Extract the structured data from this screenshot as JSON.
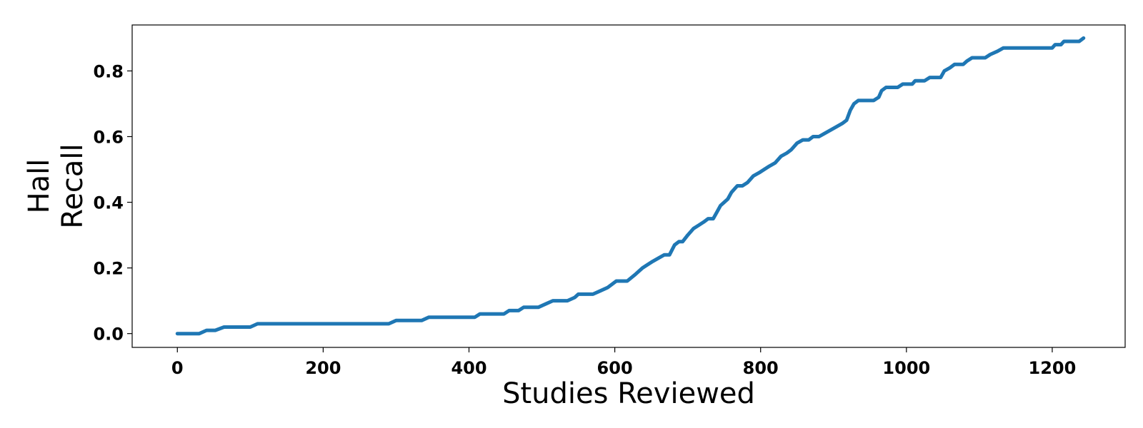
{
  "chart_data": {
    "type": "line",
    "title": "",
    "xlabel": "Studies Reviewed",
    "ylabel_lines": [
      "Hall",
      "Recall"
    ],
    "xlim": [
      -62,
      1300
    ],
    "ylim": [
      -0.042,
      0.94
    ],
    "x_ticks": [
      0,
      200,
      400,
      600,
      800,
      1000,
      1200
    ],
    "y_ticks": [
      0.0,
      0.2,
      0.4,
      0.6,
      0.8
    ],
    "x_tick_labels": [
      "0",
      "200",
      "400",
      "600",
      "800",
      "1000",
      "1200"
    ],
    "y_tick_labels": [
      "0.0",
      "0.2",
      "0.4",
      "0.6",
      "0.8"
    ],
    "grid": false,
    "legend": "none",
    "series": [
      {
        "color": "#1f77b4",
        "points": [
          [
            0,
            0.0
          ],
          [
            30,
            0.0
          ],
          [
            40,
            0.01
          ],
          [
            52,
            0.01
          ],
          [
            64,
            0.02
          ],
          [
            100,
            0.02
          ],
          [
            110,
            0.03
          ],
          [
            290,
            0.03
          ],
          [
            300,
            0.04
          ],
          [
            335,
            0.04
          ],
          [
            345,
            0.05
          ],
          [
            408,
            0.05
          ],
          [
            415,
            0.06
          ],
          [
            448,
            0.06
          ],
          [
            455,
            0.07
          ],
          [
            468,
            0.07
          ],
          [
            475,
            0.08
          ],
          [
            495,
            0.08
          ],
          [
            505,
            0.09
          ],
          [
            515,
            0.1
          ],
          [
            535,
            0.1
          ],
          [
            545,
            0.11
          ],
          [
            550,
            0.12
          ],
          [
            570,
            0.12
          ],
          [
            580,
            0.13
          ],
          [
            590,
            0.14
          ],
          [
            602,
            0.16
          ],
          [
            617,
            0.16
          ],
          [
            628,
            0.18
          ],
          [
            638,
            0.2
          ],
          [
            645,
            0.21
          ],
          [
            652,
            0.22
          ],
          [
            660,
            0.23
          ],
          [
            668,
            0.24
          ],
          [
            675,
            0.24
          ],
          [
            682,
            0.27
          ],
          [
            688,
            0.28
          ],
          [
            693,
            0.28
          ],
          [
            700,
            0.3
          ],
          [
            708,
            0.32
          ],
          [
            715,
            0.33
          ],
          [
            722,
            0.34
          ],
          [
            728,
            0.35
          ],
          [
            735,
            0.35
          ],
          [
            740,
            0.37
          ],
          [
            745,
            0.39
          ],
          [
            750,
            0.4
          ],
          [
            755,
            0.41
          ],
          [
            760,
            0.43
          ],
          [
            768,
            0.45
          ],
          [
            775,
            0.45
          ],
          [
            782,
            0.46
          ],
          [
            790,
            0.48
          ],
          [
            798,
            0.49
          ],
          [
            805,
            0.5
          ],
          [
            812,
            0.51
          ],
          [
            820,
            0.52
          ],
          [
            828,
            0.54
          ],
          [
            836,
            0.55
          ],
          [
            842,
            0.56
          ],
          [
            850,
            0.58
          ],
          [
            858,
            0.59
          ],
          [
            866,
            0.59
          ],
          [
            872,
            0.6
          ],
          [
            880,
            0.6
          ],
          [
            888,
            0.61
          ],
          [
            896,
            0.62
          ],
          [
            904,
            0.63
          ],
          [
            912,
            0.64
          ],
          [
            918,
            0.65
          ],
          [
            923,
            0.68
          ],
          [
            928,
            0.7
          ],
          [
            934,
            0.71
          ],
          [
            943,
            0.71
          ],
          [
            955,
            0.71
          ],
          [
            962,
            0.72
          ],
          [
            966,
            0.74
          ],
          [
            972,
            0.75
          ],
          [
            988,
            0.75
          ],
          [
            995,
            0.76
          ],
          [
            1008,
            0.76
          ],
          [
            1012,
            0.77
          ],
          [
            1025,
            0.77
          ],
          [
            1032,
            0.78
          ],
          [
            1047,
            0.78
          ],
          [
            1052,
            0.8
          ],
          [
            1060,
            0.81
          ],
          [
            1066,
            0.82
          ],
          [
            1078,
            0.82
          ],
          [
            1083,
            0.83
          ],
          [
            1090,
            0.84
          ],
          [
            1108,
            0.84
          ],
          [
            1115,
            0.85
          ],
          [
            1125,
            0.86
          ],
          [
            1133,
            0.87
          ],
          [
            1200,
            0.87
          ],
          [
            1204,
            0.88
          ],
          [
            1212,
            0.88
          ],
          [
            1216,
            0.89
          ],
          [
            1237,
            0.89
          ],
          [
            1243,
            0.9
          ]
        ]
      }
    ]
  }
}
